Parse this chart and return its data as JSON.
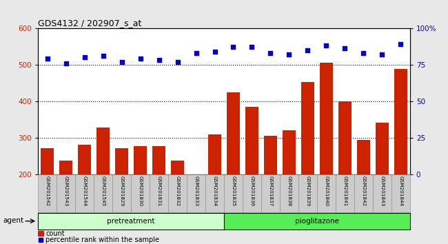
{
  "title": "GDS4132 / 202907_s_at",
  "categories": [
    "GSM201542",
    "GSM201543",
    "GSM201544",
    "GSM201545",
    "GSM201829",
    "GSM201830",
    "GSM201831",
    "GSM201832",
    "GSM201833",
    "GSM201834",
    "GSM201835",
    "GSM201836",
    "GSM201837",
    "GSM201838",
    "GSM201839",
    "GSM201840",
    "GSM201841",
    "GSM201842",
    "GSM201843",
    "GSM201844"
  ],
  "bar_values": [
    272,
    237,
    282,
    328,
    272,
    277,
    278,
    237,
    200,
    310,
    425,
    385,
    305,
    320,
    452,
    505,
    400,
    295,
    342,
    488
  ],
  "dot_values_pct": [
    79,
    76,
    80,
    81,
    77,
    79,
    78,
    77,
    83,
    84,
    87,
    87,
    83,
    82,
    85,
    88,
    86,
    83,
    82,
    89
  ],
  "bar_color": "#cc2200",
  "dot_color": "#0000cc",
  "ylim_left": [
    200,
    600
  ],
  "ylim_right": [
    0,
    100
  ],
  "yticks_left": [
    200,
    300,
    400,
    500,
    600
  ],
  "yticks_right": [
    0,
    25,
    50,
    75,
    100
  ],
  "ytick_labels_right": [
    "0",
    "25",
    "50",
    "75",
    "100%"
  ],
  "hlines": [
    300,
    400,
    500
  ],
  "pretreatment_count": 10,
  "group_labels": [
    "pretreatment",
    "pioglitazone"
  ],
  "group_colors": [
    "#ccffcc",
    "#55ee55"
  ],
  "agent_label": "agent",
  "legend_bar_label": "count",
  "legend_dot_label": "percentile rank within the sample",
  "fig_bg_color": "#e8e8e8",
  "plot_bg_color": "#ffffff",
  "label_bg_color": "#cccccc",
  "title_fontsize": 9,
  "bar_width": 0.7
}
